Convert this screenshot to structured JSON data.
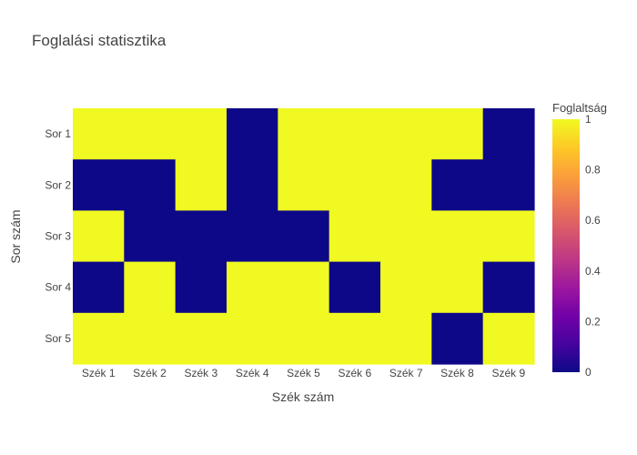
{
  "chart_data": {
    "type": "heatmap",
    "title": "Foglalási statisztika",
    "xlabel": "Szék szám",
    "ylabel": "Sor szám",
    "x_categories": [
      "Szék 1",
      "Szék 2",
      "Szék 3",
      "Szék 4",
      "Szék 5",
      "Szék 6",
      "Szék 7",
      "Szék 8",
      "Szék 9"
    ],
    "y_categories": [
      "Sor 1",
      "Sor 2",
      "Sor 3",
      "Sor 4",
      "Sor 5"
    ],
    "z": [
      [
        1,
        1,
        1,
        0,
        1,
        1,
        1,
        1,
        0
      ],
      [
        0,
        0,
        1,
        0,
        1,
        1,
        1,
        0,
        0
      ],
      [
        1,
        0,
        0,
        0,
        0,
        1,
        1,
        1,
        1
      ],
      [
        0,
        1,
        0,
        1,
        1,
        0,
        1,
        1,
        0
      ],
      [
        1,
        1,
        1,
        1,
        1,
        1,
        1,
        0,
        1
      ]
    ],
    "zlim": [
      0,
      1
    ],
    "colorscale": "plasma",
    "colorbar": {
      "title": "Foglaltság",
      "ticks": [
        "0",
        "0.2",
        "0.4",
        "0.6",
        "0.8",
        "1"
      ],
      "tick_values": [
        0,
        0.2,
        0.4,
        0.6,
        0.8,
        1
      ]
    },
    "grid": false
  }
}
